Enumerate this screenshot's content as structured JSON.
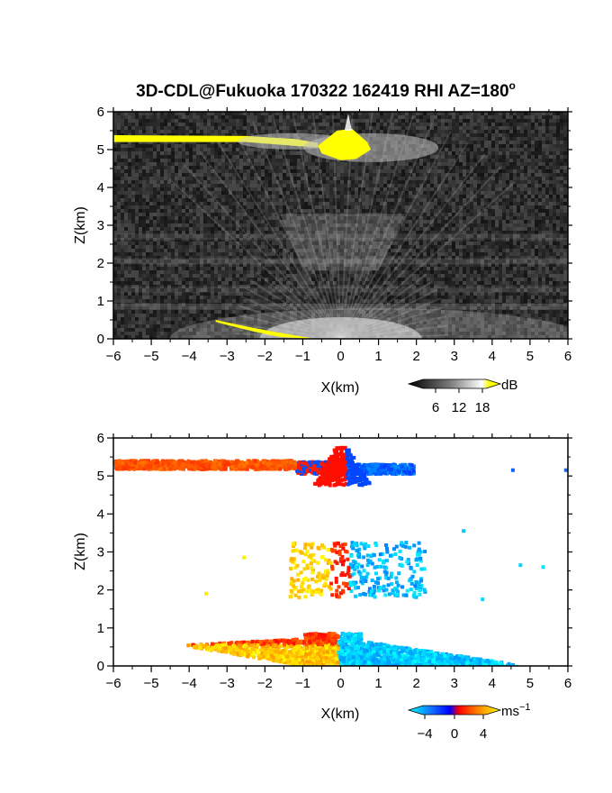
{
  "figure": {
    "title": "3D-CDL@Fukuoka 170322 162419 RHI AZ=180",
    "title_superscript": "o"
  },
  "chart_data": [
    {
      "type": "heatmap",
      "title": "3D-CDL@Fukuoka 170322 162419 RHI AZ=180°",
      "xlabel": "X(km)",
      "ylabel": "Z(km)",
      "xlim": [
        -6,
        6
      ],
      "ylim": [
        0,
        6
      ],
      "x_ticks": [
        -6,
        -5,
        -4,
        -3,
        -2,
        -1,
        0,
        1,
        2,
        3,
        4,
        5,
        6
      ],
      "y_ticks": [
        0,
        1,
        2,
        3,
        4,
        5,
        6
      ],
      "colorbar": {
        "label": "dB",
        "ticks": [
          6,
          12,
          18
        ],
        "colormap": "grayscale-to-yellow",
        "colors": [
          "#000000",
          "#808080",
          "#ffffff",
          "#ffff00"
        ]
      },
      "features": [
        {
          "name": "cloud-layer",
          "x_range": [
            -6,
            1.5
          ],
          "z_range": [
            5.1,
            5.45
          ],
          "intensity": "high (yellow)"
        },
        {
          "name": "cloud-bright-core",
          "x_range": [
            -0.6,
            0.8
          ],
          "z_range": [
            4.75,
            5.6
          ],
          "intensity": "high (yellow)"
        },
        {
          "name": "aerosol-layer-upper",
          "x_range": [
            -1.5,
            1.5
          ],
          "z_range": [
            2.0,
            3.4
          ],
          "intensity": "moderate"
        },
        {
          "name": "aerosol-layer-lower",
          "x_range": [
            -4,
            6
          ],
          "z_range": [
            0,
            0.9
          ],
          "intensity": "moderate to high"
        }
      ]
    },
    {
      "type": "heatmap",
      "xlabel": "X(km)",
      "ylabel": "Z(km)",
      "xlim": [
        -6,
        6
      ],
      "ylim": [
        0,
        6
      ],
      "x_ticks": [
        -6,
        -5,
        -4,
        -3,
        -2,
        -1,
        0,
        1,
        2,
        3,
        4,
        5,
        6
      ],
      "y_ticks": [
        0,
        1,
        2,
        3,
        4,
        5,
        6
      ],
      "colorbar": {
        "label": "ms",
        "label_superscript": "−1",
        "ticks": [
          "−4",
          "0",
          "4"
        ],
        "tick_values": [
          -4,
          0,
          4
        ],
        "colormap": "cyan-blue-red-yellow",
        "colors": [
          "#00ffff",
          "#0000ff",
          "#ff0000",
          "#ffff00"
        ]
      },
      "features": [
        {
          "name": "cloud-layer-velocity",
          "x_range": [
            -6,
            2.3
          ],
          "z_range": [
            4.9,
            5.8
          ],
          "velocity_range": [
            -4,
            3
          ]
        },
        {
          "name": "mid-level-echoes",
          "x_range": [
            -1.5,
            2.3
          ],
          "z_range": [
            1.8,
            3.3
          ],
          "velocity_range": [
            -4,
            4
          ]
        },
        {
          "name": "boundary-layer-velocity",
          "x_range": [
            -5.2,
            4.5
          ],
          "z_range": [
            0,
            0.95
          ],
          "velocity_range": [
            -4,
            4
          ]
        }
      ]
    }
  ]
}
